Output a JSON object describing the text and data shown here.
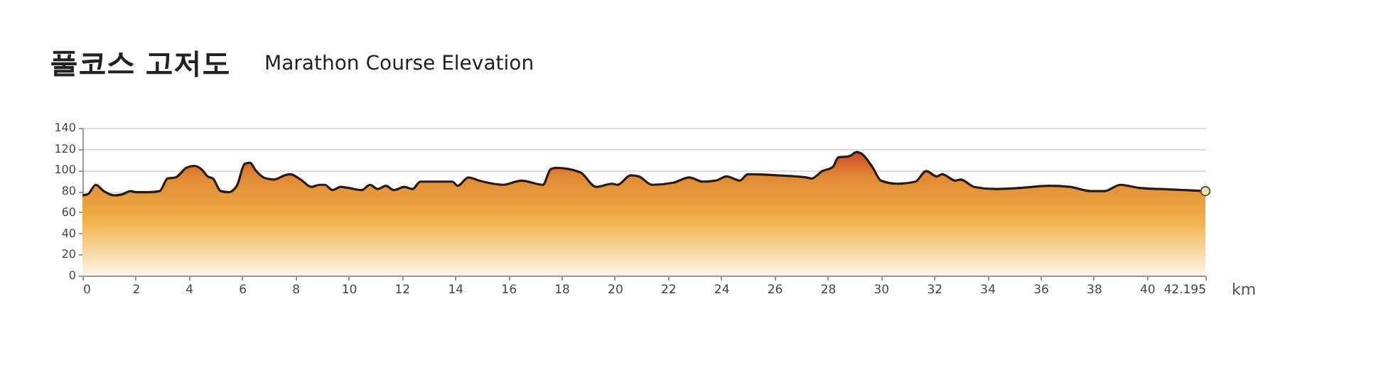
{
  "chart_data": {
    "type": "area",
    "title": "풀코스 고저도",
    "subtitle": "Marathon Course Elevation",
    "xlabel": "km",
    "xlim": [
      0,
      42.195
    ],
    "xticks": [
      0,
      2,
      4,
      6,
      8,
      10,
      12,
      14,
      16,
      18,
      20,
      22,
      24,
      26,
      28,
      30,
      32,
      34,
      36,
      38,
      40,
      42.195
    ],
    "ylim": [
      0,
      140
    ],
    "yticks": [
      0,
      20,
      40,
      60,
      80,
      100,
      120,
      140
    ],
    "grid": "y",
    "marker": "none",
    "series": [
      {
        "color": "#e08a34",
        "x": [
          0,
          0.2,
          0.5,
          0.8,
          1.2,
          1.5,
          1.8,
          2.0,
          2.5,
          2.9,
          3.2,
          3.5,
          3.9,
          4.2,
          4.5,
          4.7,
          4.9,
          5.2,
          5.5,
          5.8,
          6.1,
          6.3,
          6.5,
          6.9,
          7.2,
          7.6,
          7.8,
          8.2,
          8.6,
          8.9,
          9.1,
          9.4,
          9.7,
          10.0,
          10.5,
          10.8,
          11.1,
          11.4,
          11.7,
          12.1,
          12.4,
          12.7,
          13.0,
          13.9,
          14.1,
          14.5,
          14.9,
          15.8,
          16.5,
          17.3,
          17.6,
          17.8,
          18.7,
          19.3,
          19.9,
          20.1,
          20.6,
          20.9,
          21.4,
          22.2,
          22.8,
          23.3,
          23.8,
          24.2,
          24.7,
          25.0,
          26.1,
          27.2,
          27.4,
          27.8,
          28.2,
          28.4,
          28.8,
          29.1,
          29.3,
          29.7,
          30.0,
          30.6,
          31.3,
          31.7,
          32.1,
          32.3,
          32.8,
          33.0,
          33.5,
          34.3,
          35.2,
          36.3,
          37.1,
          37.9,
          38.4,
          39.0,
          39.3,
          39.7,
          40.5,
          41.4,
          42.195
        ],
        "values": [
          76,
          77,
          86,
          80,
          76,
          77,
          80,
          79,
          79,
          80,
          92,
          93,
          102,
          104,
          100,
          94,
          92,
          80,
          79,
          85,
          106,
          107,
          100,
          92,
          91,
          95,
          96,
          91,
          84,
          86,
          86,
          81,
          84,
          83,
          81,
          86,
          82,
          85,
          81,
          84,
          82,
          89,
          89,
          89,
          85,
          93,
          90,
          86,
          90,
          86,
          101,
          102,
          98,
          84,
          87,
          86,
          95,
          94,
          86,
          88,
          93,
          89,
          90,
          94,
          90,
          96,
          95,
          93,
          92,
          99,
          103,
          112,
          113,
          117,
          115,
          102,
          90,
          87,
          89,
          99,
          94,
          96,
          90,
          91,
          84,
          82,
          83,
          85,
          84,
          80,
          80,
          86,
          85,
          83,
          82,
          81,
          80
        ]
      }
    ]
  }
}
